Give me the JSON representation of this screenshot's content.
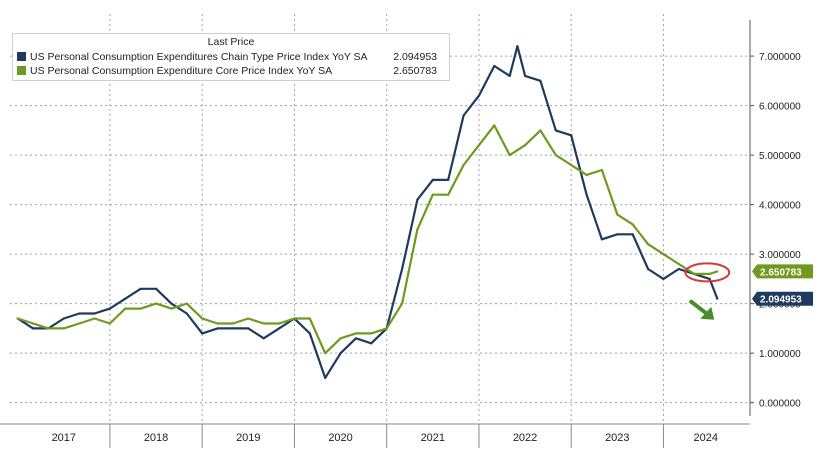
{
  "chart_data": {
    "type": "line",
    "legend": {
      "header": "Last Price",
      "placement": "top-left"
    },
    "series": [
      {
        "name": "US Personal Consumption Expenditures Chain Type Price Index YoY SA",
        "last_label": "2.094953",
        "color": "#1f3a5f",
        "x": [
          "2017-01",
          "2017-03",
          "2017-05",
          "2017-07",
          "2017-09",
          "2017-11",
          "2018-01",
          "2018-03",
          "2018-05",
          "2018-07",
          "2018-09",
          "2018-11",
          "2019-01",
          "2019-03",
          "2019-05",
          "2019-07",
          "2019-09",
          "2019-11",
          "2020-01",
          "2020-03",
          "2020-05",
          "2020-07",
          "2020-09",
          "2020-11",
          "2021-01",
          "2021-03",
          "2021-05",
          "2021-07",
          "2021-09",
          "2021-11",
          "2022-01",
          "2022-03",
          "2022-05",
          "2022-06",
          "2022-07",
          "2022-09",
          "2022-11",
          "2023-01",
          "2023-03",
          "2023-05",
          "2023-07",
          "2023-09",
          "2023-11",
          "2024-01",
          "2024-03",
          "2024-05",
          "2024-07",
          "2024-08"
        ],
        "y": [
          1.7,
          1.5,
          1.5,
          1.7,
          1.8,
          1.8,
          1.9,
          2.1,
          2.3,
          2.3,
          2.0,
          1.8,
          1.4,
          1.5,
          1.5,
          1.5,
          1.3,
          1.5,
          1.7,
          1.4,
          0.5,
          1.0,
          1.3,
          1.2,
          1.5,
          2.7,
          4.1,
          4.5,
          4.5,
          5.8,
          6.2,
          6.8,
          6.6,
          7.2,
          6.6,
          6.5,
          5.5,
          5.4,
          4.2,
          3.3,
          3.4,
          3.4,
          2.7,
          2.5,
          2.7,
          2.6,
          2.5,
          2.1
        ]
      },
      {
        "name": "US Personal Consumption Expenditure Core Price Index YoY SA",
        "last_label": "2.650783",
        "color": "#6f9a1f",
        "x": [
          "2017-01",
          "2017-03",
          "2017-05",
          "2017-07",
          "2017-09",
          "2017-11",
          "2018-01",
          "2018-03",
          "2018-05",
          "2018-07",
          "2018-09",
          "2018-11",
          "2019-01",
          "2019-03",
          "2019-05",
          "2019-07",
          "2019-09",
          "2019-11",
          "2020-01",
          "2020-03",
          "2020-05",
          "2020-07",
          "2020-09",
          "2020-11",
          "2021-01",
          "2021-03",
          "2021-05",
          "2021-07",
          "2021-09",
          "2021-11",
          "2022-01",
          "2022-03",
          "2022-05",
          "2022-07",
          "2022-09",
          "2022-11",
          "2023-01",
          "2023-03",
          "2023-05",
          "2023-07",
          "2023-09",
          "2023-11",
          "2024-01",
          "2024-03",
          "2024-05",
          "2024-07",
          "2024-08"
        ],
        "y": [
          1.7,
          1.6,
          1.5,
          1.5,
          1.6,
          1.7,
          1.6,
          1.9,
          1.9,
          2.0,
          1.9,
          2.0,
          1.7,
          1.6,
          1.6,
          1.7,
          1.6,
          1.6,
          1.7,
          1.7,
          1.0,
          1.3,
          1.4,
          1.4,
          1.5,
          2.0,
          3.5,
          4.2,
          4.2,
          4.8,
          5.2,
          5.6,
          5.0,
          5.2,
          5.5,
          5.0,
          4.8,
          4.6,
          4.7,
          3.8,
          3.6,
          3.2,
          3.0,
          2.8,
          2.6,
          2.6,
          2.650783
        ]
      }
    ],
    "y_ticks": [
      "0.000000",
      "1.000000",
      "2.000000",
      "3.000000",
      "4.000000",
      "5.000000",
      "6.000000",
      "7.000000"
    ],
    "ylim": [
      -0.35,
      7.85
    ],
    "x_ticks": [
      "2017",
      "2018",
      "2019",
      "2020",
      "2021",
      "2022",
      "2023",
      "2024"
    ],
    "xlim": [
      "2016-12",
      "2024-12"
    ],
    "grid": true,
    "annotations": {
      "circle_around": "core last value",
      "arrow": "down-right, pointing at headline series end",
      "arrow_color": "#4a8c2a",
      "circle_color": "#d23a3a"
    }
  }
}
